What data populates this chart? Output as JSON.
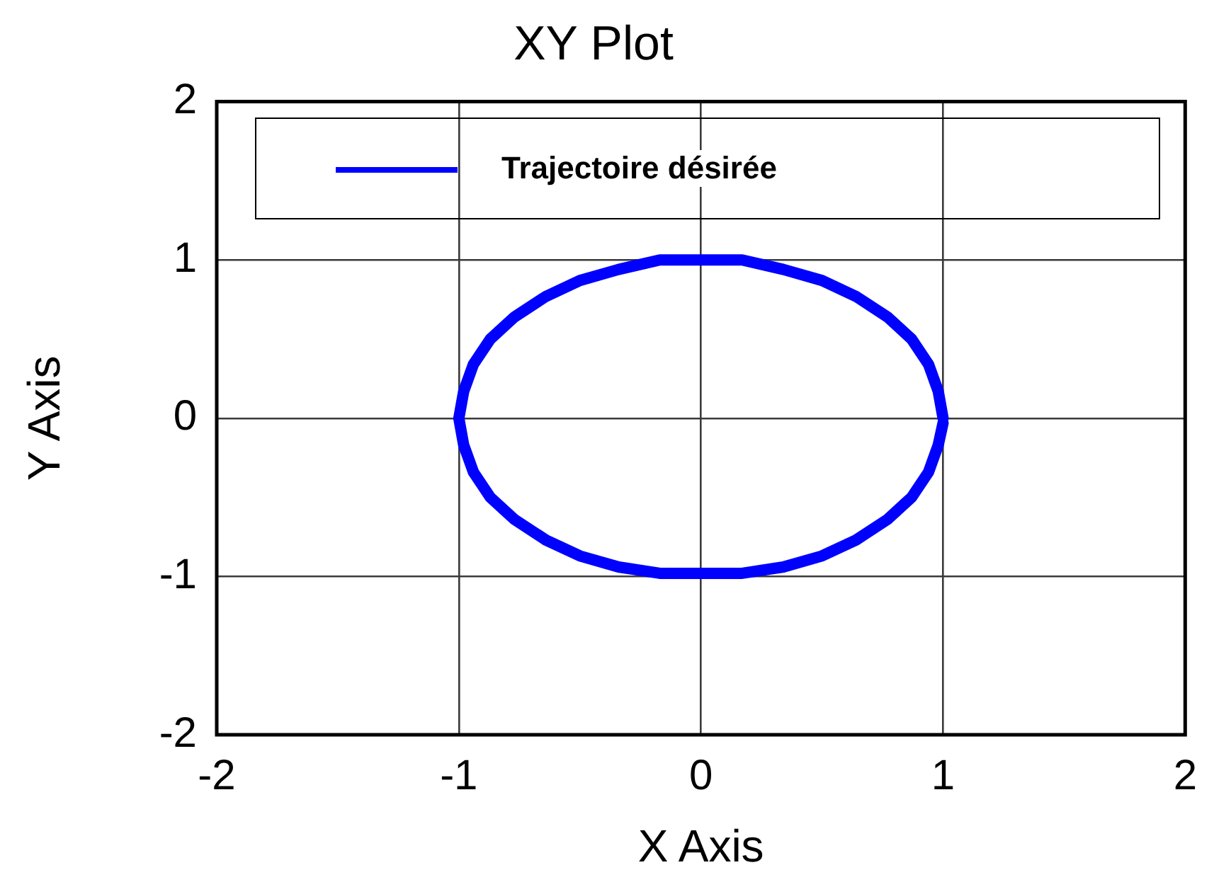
{
  "chart_data": {
    "type": "line",
    "title": "XY Plot",
    "xlabel": "X Axis",
    "ylabel": "Y Axis",
    "series": [
      {
        "name": "Trajectoire désirée",
        "color": "#0000ff",
        "x": [
          1,
          0.98,
          0.94,
          0.87,
          0.77,
          0.64,
          0.5,
          0.34,
          0.17,
          0,
          -0.17,
          -0.34,
          -0.5,
          -0.64,
          -0.77,
          -0.87,
          -0.94,
          -0.98,
          -1,
          -0.98,
          -0.94,
          -0.87,
          -0.77,
          -0.64,
          -0.5,
          -0.34,
          -0.17,
          0,
          0.17,
          0.34,
          0.5,
          0.64,
          0.77,
          0.87,
          0.94,
          0.98,
          1
        ],
        "values": [
          0,
          0.17,
          0.34,
          0.5,
          0.64,
          0.77,
          0.87,
          0.94,
          1,
          1,
          1,
          0.94,
          0.87,
          0.77,
          0.64,
          0.5,
          0.34,
          0.17,
          0,
          -0.17,
          -0.34,
          -0.5,
          -0.64,
          -0.77,
          -0.87,
          -0.94,
          -0.98,
          -0.98,
          -0.98,
          -0.94,
          -0.87,
          -0.77,
          -0.64,
          -0.5,
          -0.34,
          -0.17,
          -0.03
        ]
      }
    ],
    "xlim": [
      -2,
      2
    ],
    "ylim": [
      -2,
      2
    ],
    "xticks": [
      -2,
      -1,
      0,
      1,
      2
    ],
    "yticks": [
      -2,
      -1,
      0,
      1,
      2
    ],
    "grid": true,
    "legend": "top",
    "marker": "none"
  }
}
